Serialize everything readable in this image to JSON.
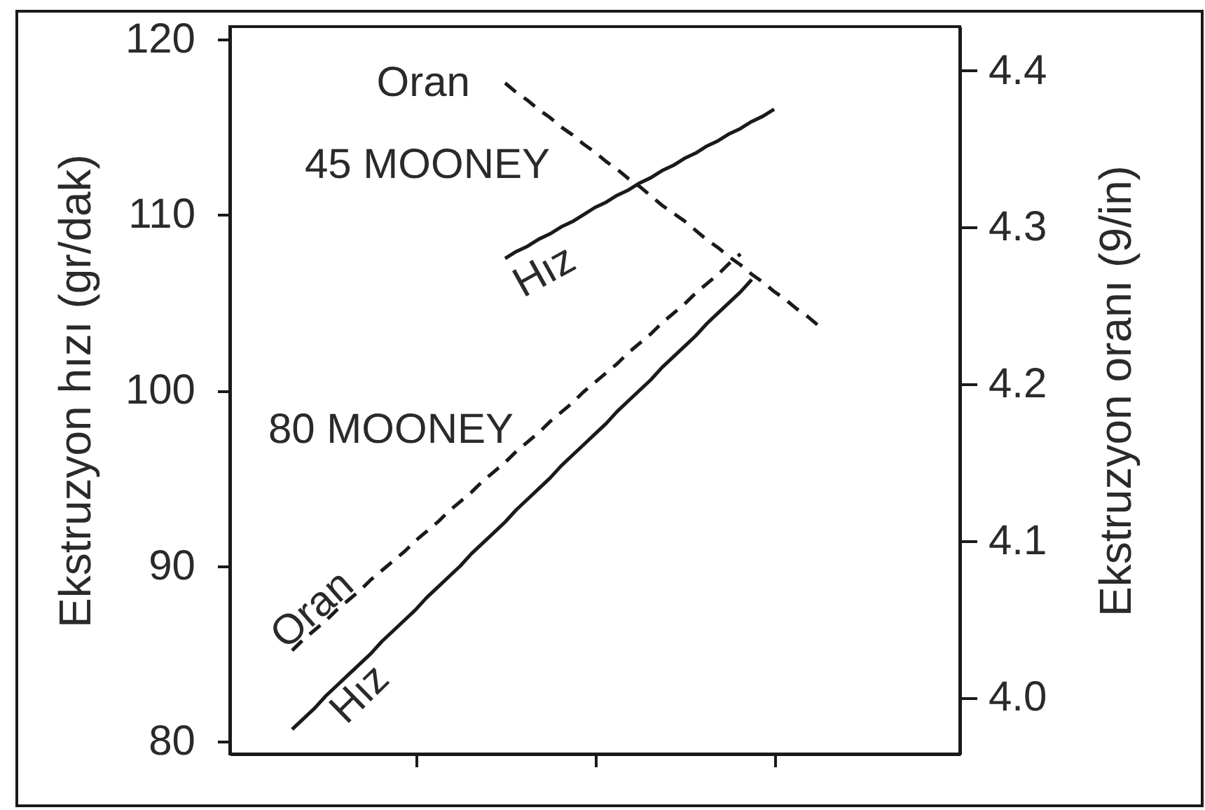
{
  "chart_data": {
    "type": "line",
    "ylabel": "Ekstruzyon hızı (gr/dak)",
    "y2label": "Ekstruzyon oranı (9/in)",
    "categories": [
      null,
      null,
      null,
      null,
      null,
      null,
      null,
      null,
      null,
      null,
      null,
      null,
      null,
      null,
      null,
      null,
      null,
      null,
      null,
      null,
      null,
      null,
      null,
      null,
      null,
      null,
      null,
      null,
      null,
      null,
      null,
      null,
      null,
      null,
      null,
      null,
      null,
      null,
      null,
      null,
      null,
      null,
      null,
      null,
      null,
      null,
      null,
      null,
      null,
      null,
      null,
      null,
      null,
      null,
      null,
      null,
      null,
      null,
      null,
      null,
      null,
      null,
      null,
      null,
      null
    ],
    "series": [
      {
        "name": "Hız",
        "color": "#1a1a1a",
        "axis": "y",
        "line_style": "solid",
        "values": [
          null,
          null,
          null,
          null,
          null,
          null,
          null,
          null,
          null,
          null,
          null,
          null,
          null,
          null,
          null,
          null,
          null,
          null,
          null,
          null,
          null,
          null,
          null,
          null,
          107.5,
          107.9,
          108.2,
          108.6,
          108.9,
          109.3,
          109.6,
          110.0,
          110.4,
          110.7,
          111.1,
          111.4,
          111.8,
          112.1,
          112.5,
          112.8,
          113.2,
          113.5,
          113.9,
          114.2,
          114.6,
          114.9,
          115.3,
          115.6,
          116.0,
          null,
          null,
          null,
          null,
          null,
          null,
          null,
          null,
          null,
          null,
          null,
          null,
          null,
          null,
          null,
          null
        ]
      },
      {
        "name": "Oran",
        "color": "#1a1a1a",
        "axis": "y2",
        "line_style": "dashed",
        "values": [
          null,
          null,
          null,
          null,
          null,
          null,
          null,
          null,
          null,
          null,
          null,
          null,
          null,
          null,
          null,
          null,
          null,
          null,
          null,
          null,
          null,
          null,
          null,
          null,
          4.392,
          4.386,
          4.381,
          4.375,
          4.37,
          4.364,
          4.359,
          4.353,
          4.348,
          4.342,
          4.337,
          4.331,
          4.326,
          4.32,
          4.314,
          4.309,
          4.304,
          4.298,
          4.292,
          4.287,
          4.281,
          4.276,
          4.27,
          4.265,
          4.259,
          4.254,
          4.248,
          4.243,
          4.237,
          null,
          null,
          null,
          null,
          null,
          null,
          null,
          null,
          null,
          null,
          null,
          null
        ]
      },
      {
        "name": "Hız",
        "color": "#1a1a1a",
        "axis": "y",
        "line_style": "solid",
        "values": [
          null,
          null,
          null,
          null,
          null,
          80.7,
          81.3,
          81.9,
          82.6,
          83.2,
          83.8,
          84.4,
          85.0,
          85.7,
          86.3,
          86.9,
          87.5,
          88.2,
          88.8,
          89.4,
          90.0,
          90.7,
          91.3,
          91.9,
          92.5,
          93.2,
          93.8,
          94.4,
          95.0,
          95.7,
          96.3,
          96.9,
          97.5,
          98.1,
          98.8,
          99.4,
          100.0,
          100.6,
          101.3,
          101.9,
          102.5,
          103.1,
          103.8,
          104.4,
          105.0,
          105.6,
          106.3,
          null,
          null,
          null,
          null,
          null,
          null,
          null,
          null,
          null,
          null,
          null,
          null,
          null,
          null,
          null,
          null,
          null,
          null
        ]
      },
      {
        "name": "Oran",
        "color": "#1a1a1a",
        "axis": "y2",
        "line_style": "dashed",
        "values": [
          null,
          null,
          null,
          null,
          null,
          4.03,
          4.037,
          4.043,
          4.049,
          4.056,
          4.062,
          4.068,
          4.075,
          4.081,
          4.087,
          4.093,
          4.1,
          4.106,
          4.112,
          4.119,
          4.125,
          4.131,
          4.138,
          4.144,
          4.15,
          4.157,
          4.163,
          4.169,
          4.176,
          4.182,
          4.188,
          4.195,
          4.201,
          4.207,
          4.213,
          4.22,
          4.226,
          4.232,
          4.239,
          4.245,
          4.251,
          4.258,
          4.264,
          4.27,
          4.277,
          4.283,
          null,
          null,
          null,
          null,
          null,
          null,
          null,
          null,
          null,
          null,
          null,
          null,
          null,
          null,
          null,
          null,
          null,
          null,
          null
        ]
      }
    ],
    "annotations": [
      "45 MOONEY",
      "80 MOONEY"
    ],
    "ylim": [
      79.3,
      120.7
    ],
    "yticks": [
      80,
      90,
      100,
      110,
      120
    ],
    "y2lim": [
      3.964,
      4.428
    ],
    "y2ticks": [
      {
        "value": 4,
        "label": "4.0"
      },
      4.1,
      4.2,
      4.3,
      4.4
    ]
  }
}
